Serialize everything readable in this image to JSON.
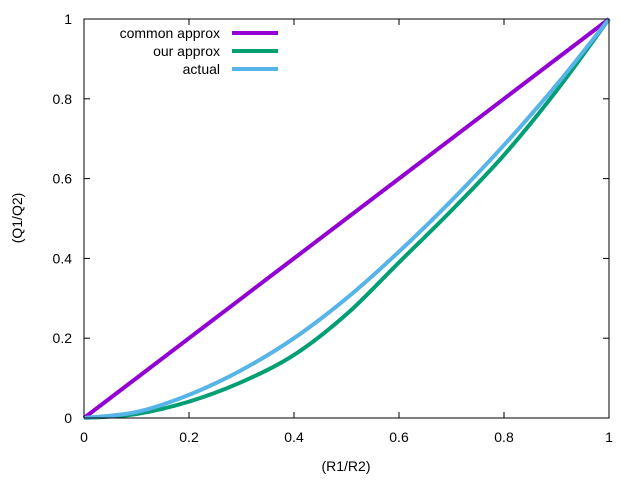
{
  "chart_data": {
    "type": "line",
    "title": "",
    "xlabel": "(R1/R2)",
    "ylabel": "(Q1/Q2)",
    "xlim": [
      0,
      1
    ],
    "ylim": [
      0,
      1
    ],
    "grid": false,
    "legend_placement": "top-left",
    "xticks": [
      "0",
      "0.2",
      "0.4",
      "0.6",
      "0.8",
      "1"
    ],
    "yticks": [
      "0",
      "0.2",
      "0.4",
      "0.6",
      "0.8",
      "1"
    ],
    "x": [
      0,
      0.1,
      0.2,
      0.3,
      0.4,
      0.5,
      0.6,
      0.7,
      0.8,
      0.9,
      1.0
    ],
    "series": [
      {
        "name": "common approx",
        "color": "#9400d3",
        "values": [
          0,
          0.1,
          0.2,
          0.3,
          0.4,
          0.5,
          0.6,
          0.7,
          0.8,
          0.9,
          1.0
        ]
      },
      {
        "name": "our approx",
        "color": "#009e73",
        "values": [
          0,
          0.01,
          0.041,
          0.09,
          0.158,
          0.26,
          0.39,
          0.52,
          0.659,
          0.82,
          1.0
        ]
      },
      {
        "name": "actual",
        "color": "#56b4e9",
        "values": [
          0,
          0.015,
          0.058,
          0.12,
          0.2,
          0.3,
          0.417,
          0.545,
          0.684,
          0.835,
          1.0
        ]
      }
    ]
  }
}
